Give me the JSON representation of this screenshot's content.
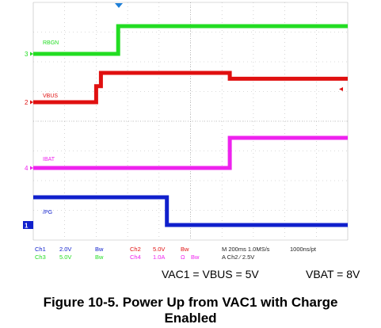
{
  "chart_data": {
    "type": "line",
    "title": "",
    "xlabel": "",
    "ylabel": "",
    "time_unit": "ms",
    "xlim": [
      -1.0,
      1.0
    ],
    "grid": true,
    "channel_labels": [
      "RBGN",
      "VBUS",
      "IBAT",
      "/PG"
    ],
    "channel_markers": [
      "3",
      "2",
      "4",
      "1"
    ],
    "series": [
      {
        "name": "RBGN",
        "channel": "Ch3",
        "color": "#22dd22",
        "y_base": 0,
        "y_high": 1,
        "x": [
          -1.0,
          -0.46,
          -0.46,
          1.0
        ],
        "y": [
          0,
          0,
          1,
          1
        ]
      },
      {
        "name": "VBUS",
        "channel": "Ch2",
        "color": "#e01010",
        "y_base": 0,
        "y_high": 1,
        "x": [
          -1.0,
          -0.6,
          -0.6,
          -0.57,
          -0.57,
          0.25,
          0.25,
          1.0
        ],
        "y": [
          0,
          0,
          0.55,
          0.55,
          1,
          1,
          0.8,
          0.8
        ]
      },
      {
        "name": "IBAT",
        "channel": "Ch4",
        "color": "#ee22ee",
        "y_base": 0,
        "y_high": 1,
        "x": [
          -1.0,
          0.25,
          0.25,
          1.0
        ],
        "y": [
          0,
          0,
          1,
          1
        ]
      },
      {
        "name": "/PG",
        "channel": "Ch1",
        "color": "#1020cc",
        "y_base": 1,
        "y_high": 0,
        "x": [
          -1.0,
          -0.15,
          -0.15,
          1.0
        ],
        "y": [
          1,
          1,
          0,
          0
        ]
      }
    ],
    "settings": {
      "row1": [
        "Ch1",
        "2.0V",
        "Bw",
        "Ch2",
        "5.0V",
        "Bw",
        "M 200ms 1.0MS/s",
        "1000ns/pt"
      ],
      "row2": [
        "Ch3",
        "5.0V",
        "Bw",
        "Ch4",
        "1.0A",
        "Ω",
        "Bw",
        "A Ch2 ∕ 2.5V"
      ]
    }
  },
  "conditions": {
    "left": "VAC1 = VBUS = 5V",
    "right": "VBAT = 8V"
  },
  "caption": {
    "line1": "Figure 10-5. Power Up from VAC1 with Charge",
    "line2": "Enabled"
  },
  "colors": {
    "ch1": "#1020cc",
    "ch2": "#e01010",
    "ch3": "#22dd22",
    "ch4": "#ee22ee",
    "grid": "#b8b8b8",
    "trigger": "#1e7fd8"
  }
}
